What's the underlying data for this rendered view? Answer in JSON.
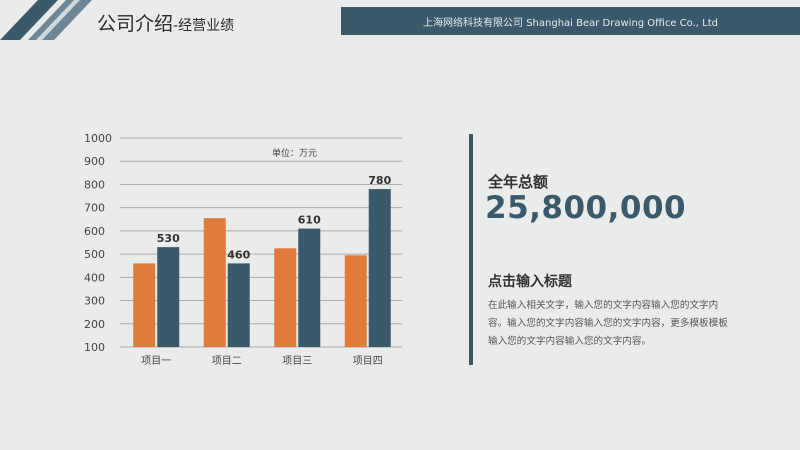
{
  "header": {
    "title_main": "公司介绍",
    "title_sub": "-经营业绩",
    "company_banner": "上海网络科技有限公司 Shanghai Bear Drawing Office Co., Ltd"
  },
  "chart_unit": "单位：万元",
  "chart_data": {
    "type": "bar",
    "categories": [
      "项目一",
      "项目二",
      "项目三",
      "项目四"
    ],
    "series": [
      {
        "values": [
          460,
          655,
          525,
          495
        ],
        "color": "#e07b39"
      },
      {
        "values": [
          530,
          460,
          610,
          780
        ],
        "color": "#3a5a6c",
        "labels": [
          "530",
          "460",
          "610",
          "780"
        ]
      }
    ],
    "ylim": [
      100,
      1000
    ],
    "yticks": [
      "100",
      "200",
      "300",
      "400",
      "500",
      "600",
      "700",
      "800",
      "900",
      "1000"
    ],
    "grid": true
  },
  "summary": {
    "total_label": "全年总额",
    "total_value": "25,800,000"
  },
  "section": {
    "title": "点击输入标题",
    "body": "在此输入相关文字，输入您的文字内容输入您的文字内容。输入您的文字内容输入您的文字内容，更多模板模板输入您的文字内容输入您的文字内容。"
  },
  "colors": {
    "accent_dark": "#3a5a6c",
    "accent_orange": "#e07b39"
  }
}
